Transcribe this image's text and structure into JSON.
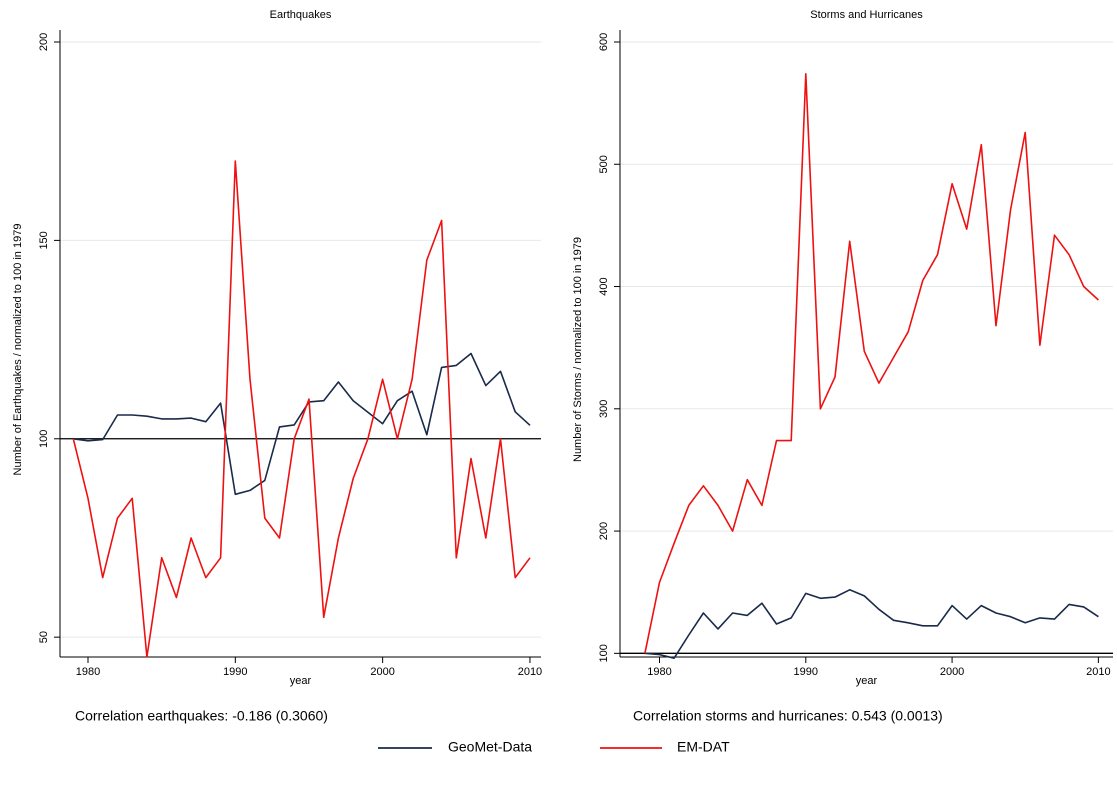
{
  "chart_data": [
    {
      "type": "line",
      "title": "Earthquakes",
      "x_label": "year",
      "y_label": "Number of Earthquakes / normalized to 100 in 1979",
      "note": "Correlation earthquakes: -0.186 (0.3060)",
      "x": [
        1979,
        1980,
        1981,
        1982,
        1983,
        1984,
        1985,
        1986,
        1987,
        1988,
        1989,
        1990,
        1991,
        1992,
        1993,
        1994,
        1995,
        1996,
        1997,
        1998,
        1999,
        2000,
        2001,
        2002,
        2003,
        2004,
        2005,
        2006,
        2007,
        2008,
        2009,
        2010
      ],
      "series": [
        {
          "name": "GeoMet-Data",
          "color": "#1a2a4a",
          "values": [
            100,
            99.5,
            99.8,
            106,
            106,
            105.7,
            105,
            105,
            105.2,
            104.3,
            109,
            86,
            87,
            89.5,
            103,
            103.5,
            109.3,
            109.6,
            114.3,
            109.6,
            106.7,
            103.8,
            109.6,
            112,
            101,
            118,
            118.5,
            121.5,
            113.4,
            117,
            106.8,
            103.4
          ]
        },
        {
          "name": "EM-DAT",
          "color": "#ee1111",
          "values": [
            100,
            85,
            65,
            80,
            85,
            45,
            70,
            60,
            75,
            65,
            70,
            170,
            115,
            80,
            75,
            100,
            110,
            55,
            75,
            90,
            100,
            115,
            100,
            115,
            145,
            155,
            70,
            95,
            75,
            100,
            65,
            70
          ]
        }
      ],
      "reference_line": 100,
      "xlim": [
        1978.1,
        2010.75
      ],
      "xticks": [
        1980,
        1990,
        2000,
        2010
      ],
      "ylim": [
        45,
        200
      ],
      "yticks": [
        50,
        100,
        150,
        200
      ],
      "grid": true
    },
    {
      "type": "line",
      "title": "Storms and Hurricanes",
      "x_label": "year",
      "y_label": "Number of Storms / normalized to 100 in 1979",
      "note": "Correlation storms and hurricanes: 0.543 (0.0013)",
      "x": [
        1979,
        1980,
        1981,
        1982,
        1983,
        1984,
        1985,
        1986,
        1987,
        1988,
        1989,
        1990,
        1991,
        1992,
        1993,
        1994,
        1995,
        1996,
        1997,
        1998,
        1999,
        2000,
        2001,
        2002,
        2003,
        2004,
        2005,
        2006,
        2007,
        2008,
        2009,
        2010
      ],
      "series": [
        {
          "color": "#1a2a4a",
          "values": [
            100,
            99,
            96,
            115,
            133,
            120,
            133,
            131,
            141,
            124,
            129,
            149,
            145,
            146,
            152,
            147,
            136,
            127,
            125,
            122.5,
            122.5,
            139,
            128,
            139,
            133,
            130,
            125,
            129,
            128,
            140,
            138,
            130
          ]
        },
        {
          "color": "#ee1111",
          "values": [
            100,
            158,
            190,
            221,
            237,
            221,
            200,
            242,
            221,
            274,
            274,
            574,
            300,
            326,
            437,
            347,
            321,
            342,
            363,
            405,
            426,
            484,
            447,
            516,
            368,
            463,
            526,
            352,
            442,
            426,
            400,
            389
          ]
        }
      ],
      "reference_line": 100,
      "xlim": [
        1977.3,
        2011
      ],
      "xticks": [
        1980,
        1990,
        2000,
        2010
      ],
      "ylim": [
        97,
        600
      ],
      "yticks": [
        100,
        200,
        300,
        400,
        500,
        600
      ],
      "grid": true
    }
  ]
}
